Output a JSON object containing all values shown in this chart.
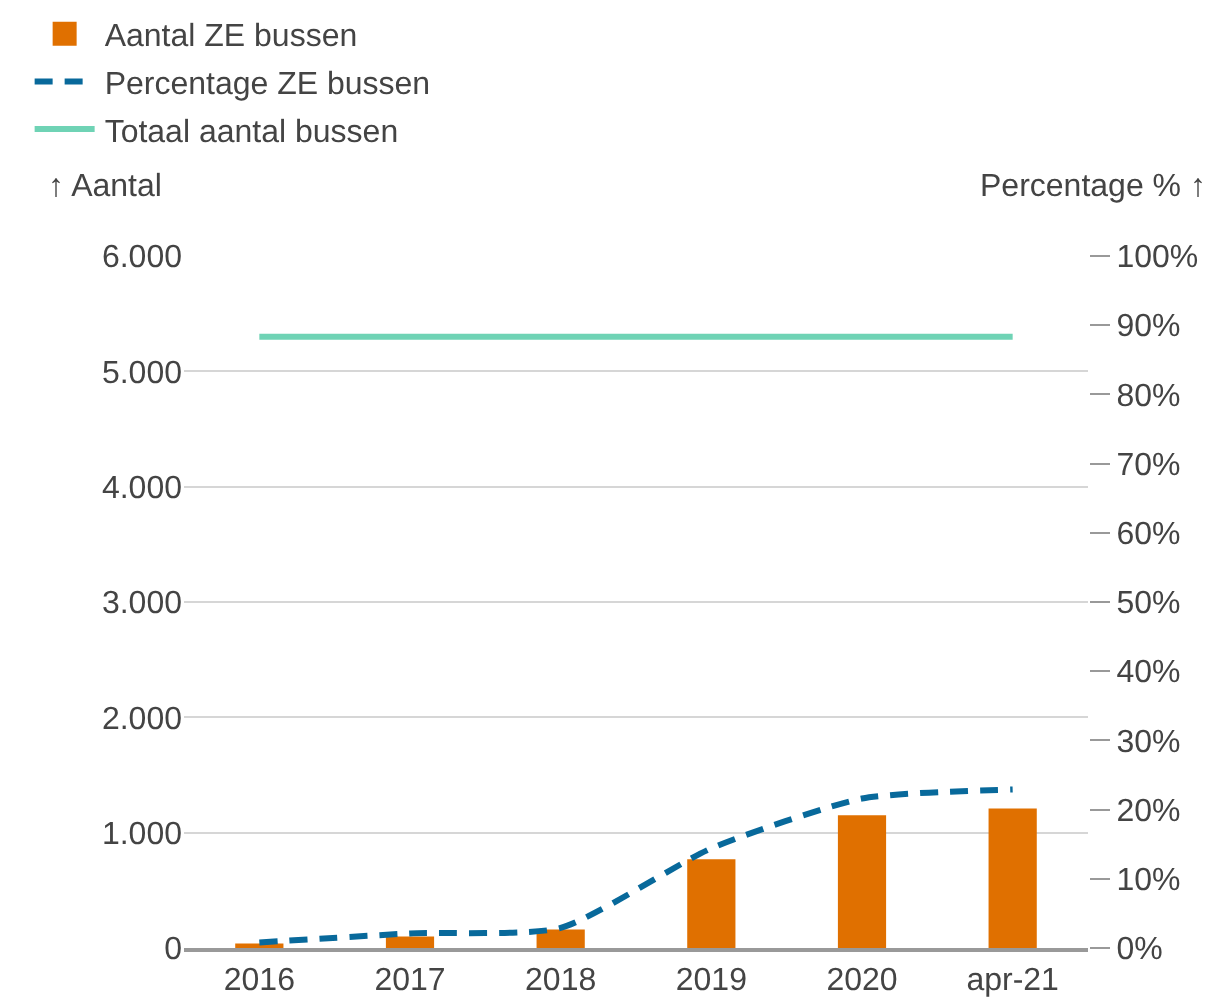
{
  "chart_data": {
    "type": "bar",
    "categories": [
      "2016",
      "2017",
      "2018",
      "2019",
      "2020",
      "apr-21"
    ],
    "series": [
      {
        "name": "Aantal ZE bussen",
        "color": "#e07000",
        "values": [
          40,
          100,
          160,
          770,
          1150,
          1210
        ]
      },
      {
        "name": "Percentage ZE bussen",
        "type": "line",
        "axis": "y2",
        "line_style": "dashed",
        "color": "#08699b",
        "values": [
          0.8,
          2.1,
          2.9,
          14.4,
          21.6,
          22.9
        ]
      },
      {
        "name": "Totaal aantal bussen",
        "type": "line",
        "line_style": "solid",
        "color": "#6fd3b5",
        "values": [
          5300,
          5300,
          5300,
          5300,
          5300,
          5300
        ]
      }
    ],
    "ylabel": "↑ Aantal",
    "y2label": "Percentage % ↑",
    "ylim": [
      0,
      6000
    ],
    "yticks": [
      0,
      {
        "value": 1000,
        "label": "1.000"
      },
      {
        "value": 2000,
        "label": "2.000"
      },
      {
        "value": 3000,
        "label": "3.000"
      },
      {
        "value": 4000,
        "label": "4.000"
      },
      {
        "value": 5000,
        "label": "5.000"
      },
      {
        "value": 6000,
        "label": "6.000"
      }
    ],
    "y2lim": [
      0,
      100
    ],
    "y2ticks": [
      {
        "value": 0,
        "label": "0%"
      },
      {
        "value": 10,
        "label": "10%"
      },
      {
        "value": 20,
        "label": "20%"
      },
      {
        "value": 30,
        "label": "30%"
      },
      {
        "value": 40,
        "label": "40%"
      },
      {
        "value": 50,
        "label": "50%"
      },
      {
        "value": 60,
        "label": "60%"
      },
      {
        "value": 70,
        "label": "70%"
      },
      {
        "value": 80,
        "label": "80%"
      },
      {
        "value": 90,
        "label": "90%"
      },
      {
        "value": 100,
        "label": "100%"
      }
    ],
    "grid": "y",
    "legend": "top left",
    "marker": "none"
  }
}
